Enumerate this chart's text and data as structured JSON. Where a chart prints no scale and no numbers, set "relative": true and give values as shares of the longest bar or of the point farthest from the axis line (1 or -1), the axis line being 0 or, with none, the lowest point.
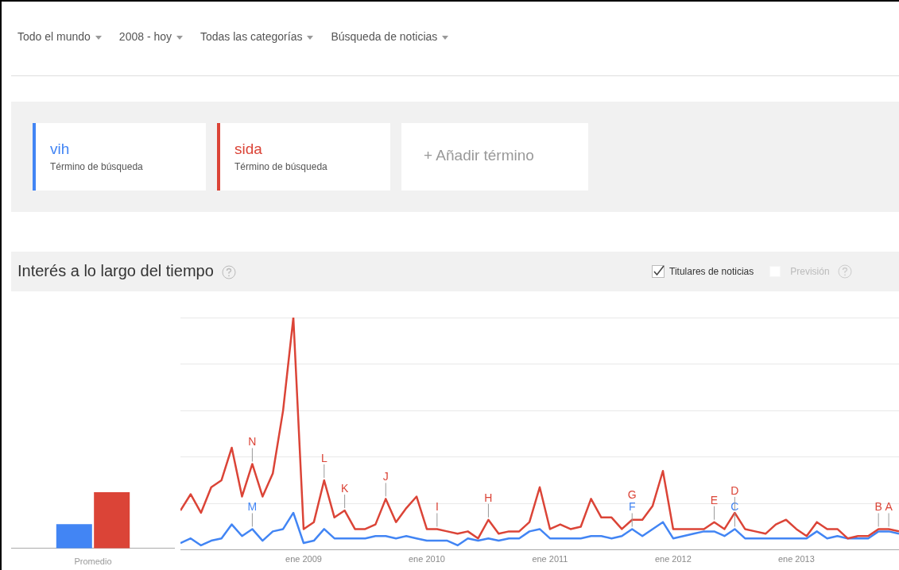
{
  "chart_data": [
    {
      "type": "other",
      "annotations": [
        "Todo el mundo",
        "2008 - hoy",
        "Todas las categorías",
        "Búsqueda de noticias",
        "+ Añadir término"
      ]
    },
    {
      "type": "line",
      "title": "Interés a lo largo del tiempo",
      "legend": "top",
      "legend_title": "Término de búsqueda",
      "relative": true,
      "grid": "y",
      "marker": "none",
      "line_style": "solid",
      "x": [
        "2008-01",
        "2008-02",
        "2008-03",
        "2008-04",
        "2008-05",
        "2008-06",
        "2008-07",
        "2008-08",
        "2008-09",
        "2008-10",
        "2008-11",
        "2008-12",
        "2009-01",
        "2009-02",
        "2009-03",
        "2009-04",
        "2009-05",
        "2009-06",
        "2009-07",
        "2009-08",
        "2009-09",
        "2009-10",
        "2009-11",
        "2009-12",
        "2010-01",
        "2010-02",
        "2010-03",
        "2010-04",
        "2010-05",
        "2010-06",
        "2010-07",
        "2010-08",
        "2010-09",
        "2010-10",
        "2010-11",
        "2010-12",
        "2011-01",
        "2011-02",
        "2011-03",
        "2011-04",
        "2011-05",
        "2011-06",
        "2011-07",
        "2011-08",
        "2011-09",
        "2011-10",
        "2011-11",
        "2011-12",
        "2012-01",
        "2012-02",
        "2012-03",
        "2012-04",
        "2012-05",
        "2012-06",
        "2012-07",
        "2012-08",
        "2012-09",
        "2012-10",
        "2012-11",
        "2012-12",
        "2013-01",
        "2013-02",
        "2013-03",
        "2013-04",
        "2013-05",
        "2013-06",
        "2013-07",
        "2013-08",
        "2013-09",
        "2013-10",
        "2013-11"
      ],
      "xlim": [
        "2008-01",
        "2013-11"
      ],
      "xticks": [
        {
          "value": "2009-01",
          "label": "ene 2009"
        },
        {
          "value": "2010-01",
          "label": "ene 2010"
        },
        {
          "value": "2011-01",
          "label": "ene 2011"
        },
        {
          "value": "2012-01",
          "label": "ene 2012"
        },
        {
          "value": "2013-01",
          "label": "ene 2013"
        }
      ],
      "series": [
        {
          "name": "vih",
          "color": "#4285f4",
          "values": [
            0.03,
            0.05,
            0.02,
            0.04,
            0.05,
            0.11,
            0.06,
            0.09,
            0.04,
            0.08,
            0.09,
            0.16,
            0.03,
            0.04,
            0.09,
            0.05,
            0.05,
            0.05,
            0.05,
            0.06,
            0.06,
            0.05,
            0.06,
            0.05,
            0.04,
            0.04,
            0.04,
            0.02,
            0.05,
            0.04,
            0.05,
            0.04,
            0.05,
            0.05,
            0.08,
            0.09,
            0.05,
            0.05,
            0.05,
            0.05,
            0.06,
            0.06,
            0.05,
            0.06,
            0.09,
            0.06,
            0.09,
            0.12,
            0.05,
            0.06,
            0.07,
            0.08,
            0.08,
            0.06,
            0.09,
            0.05,
            0.05,
            0.05,
            0.05,
            0.05,
            0.05,
            0.05,
            0.08,
            0.05,
            0.06,
            0.05,
            0.05,
            0.05,
            0.08,
            0.08,
            0.07
          ]
        },
        {
          "name": "sida",
          "color": "#db4437",
          "values": [
            0.17,
            0.24,
            0.16,
            0.27,
            0.3,
            0.44,
            0.23,
            0.37,
            0.23,
            0.33,
            0.6,
            1,
            0.09,
            0.12,
            0.3,
            0.14,
            0.17,
            0.09,
            0.09,
            0.11,
            0.22,
            0.12,
            0.18,
            0.23,
            0.09,
            0.09,
            0.08,
            0.07,
            0.08,
            0.05,
            0.13,
            0.07,
            0.08,
            0.08,
            0.12,
            0.27,
            0.09,
            0.11,
            0.09,
            0.1,
            0.22,
            0.14,
            0.14,
            0.09,
            0.13,
            0.13,
            0.19,
            0.34,
            0.09,
            0.09,
            0.09,
            0.09,
            0.12,
            0.09,
            0.16,
            0.09,
            0.08,
            0.07,
            0.11,
            0.13,
            0.09,
            0.06,
            0.12,
            0.09,
            0.09,
            0.05,
            0.06,
            0.06,
            0.09,
            0.09,
            0.08
          ]
        }
      ],
      "annotations": [
        "Titulares de noticias",
        "Previsión",
        {
          "text": "N",
          "x": "2008-08",
          "y": 0.37
        },
        {
          "text": "M",
          "x": "2008-08",
          "y": 0.09
        },
        {
          "text": "L",
          "x": "2009-03",
          "y": 0.3
        },
        {
          "text": "K",
          "x": "2009-05",
          "y": 0.17
        },
        {
          "text": "J",
          "x": "2009-09",
          "y": 0.22
        },
        {
          "text": "I",
          "x": "2010-02",
          "y": 0.09
        },
        {
          "text": "H",
          "x": "2010-07",
          "y": 0.13
        },
        {
          "text": "G",
          "x": "2011-09",
          "y": 0.13
        },
        {
          "text": "F",
          "x": "2011-09",
          "y": 0.09
        },
        {
          "text": "E",
          "x": "2012-05",
          "y": 0.12
        },
        {
          "text": "D",
          "x": "2012-07",
          "y": 0.16
        },
        {
          "text": "C",
          "x": "2012-07",
          "y": 0.09
        },
        {
          "text": "B",
          "x": "2013-09",
          "y": 0.09
        },
        {
          "text": "A",
          "x": "2013-10",
          "y": 0.09
        }
      ]
    },
    {
      "type": "bar",
      "relative": true,
      "categories": [
        "Promedio"
      ],
      "series": [
        {
          "color": "#4285f4",
          "values": [
            0.43
          ]
        },
        {
          "color": "#db4437",
          "values": [
            1
          ]
        }
      ]
    }
  ]
}
